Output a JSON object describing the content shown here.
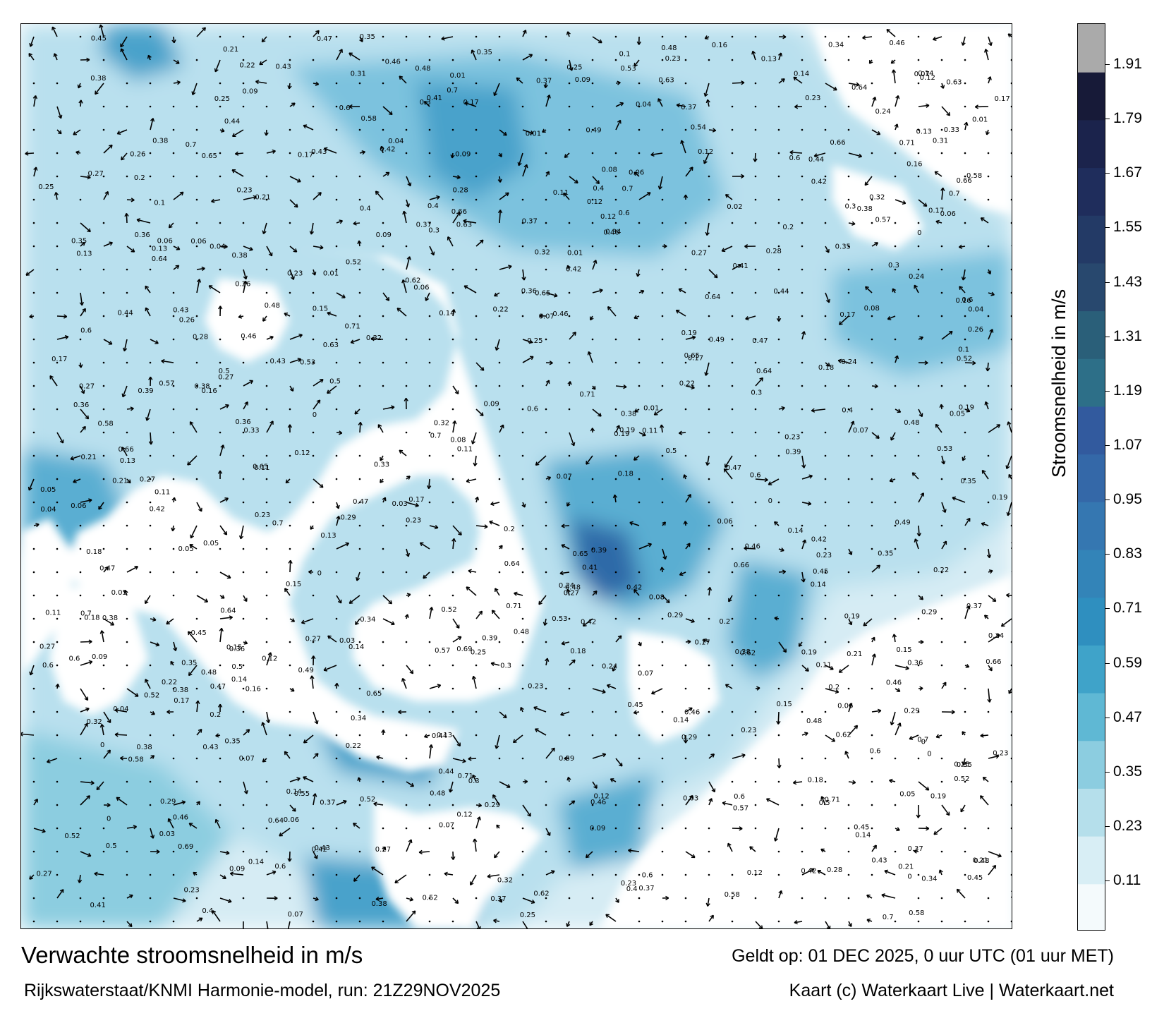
{
  "title": "Verwachte stroomsnelheid in m/s",
  "model_run": "Rijkswaterstaat/KNMI Harmonie-model, run: 21Z29NOV2025",
  "valid_time": "Geldt op: 01 DEC 2025, 0 uur UTC (01 uur MET)",
  "credit": "Kaart (c) Waterkaart Live | Waterkaart.net",
  "colorbar": {
    "label": "Stroomsnelheid in m/s",
    "ticks": [
      "1.91",
      "1.79",
      "1.67",
      "1.55",
      "1.43",
      "1.31",
      "1.19",
      "1.07",
      "0.95",
      "0.83",
      "0.71",
      "0.59",
      "0.47",
      "0.35",
      "0.23",
      "0.11"
    ],
    "tick_values": [
      1.91,
      1.79,
      1.67,
      1.55,
      1.43,
      1.31,
      1.19,
      1.07,
      0.95,
      0.83,
      0.71,
      0.59,
      0.47,
      0.35,
      0.23,
      0.11
    ],
    "min": 0.0,
    "max": 2.0,
    "colors": [
      "#f4fafc",
      "#d8eef5",
      "#b5dfeb",
      "#8ccde0",
      "#5fb8d4",
      "#3fa3c9",
      "#2f8fbf",
      "#3384b8",
      "#3577b1",
      "#3468a8",
      "#325a9e",
      "#2d6f88",
      "#2a5f79",
      "#28486e",
      "#233a66",
      "#1f2d5c",
      "#1b234c",
      "#171a38",
      "#aaaaaa"
    ]
  },
  "colors": {
    "land": "#ffffff",
    "sea_light": "#e6f3f8",
    "sea_mid": "#a6d6e8",
    "sea_strong": "#4aa2cb",
    "sea_peak": "#2f6aa8"
  },
  "map_labels": [
    "0.22",
    "0.14",
    "0.13",
    "0.03",
    "0.12",
    "0.11",
    "0.07",
    "0.08",
    "0.09",
    "0.1",
    "0.05",
    "0.04",
    "0.06",
    "0.15",
    "0.16",
    "0.17",
    "0.18",
    "0.19",
    "0.2",
    "0.21",
    "0.23",
    "0.24",
    "0.25",
    "0.26",
    "0.27",
    "0.28",
    "0.29",
    "0.3",
    "0.31",
    "0.32",
    "0.33",
    "0.34",
    "0.35",
    "0.36",
    "0.37",
    "0.38",
    "0.39",
    "0.4",
    "0.41",
    "0.42",
    "0.43",
    "0.44",
    "0.45",
    "0.46",
    "0.47",
    "0.48",
    "0.49",
    "0.5",
    "0.52",
    "0.53",
    "0.54",
    "0.55",
    "0.57",
    "0.58",
    "0.6",
    "0.62",
    "0.63",
    "0.64",
    "0.65",
    "0.66",
    "0.69",
    "0.7",
    "0.71",
    "0.02",
    "0.01",
    "0"
  ]
}
